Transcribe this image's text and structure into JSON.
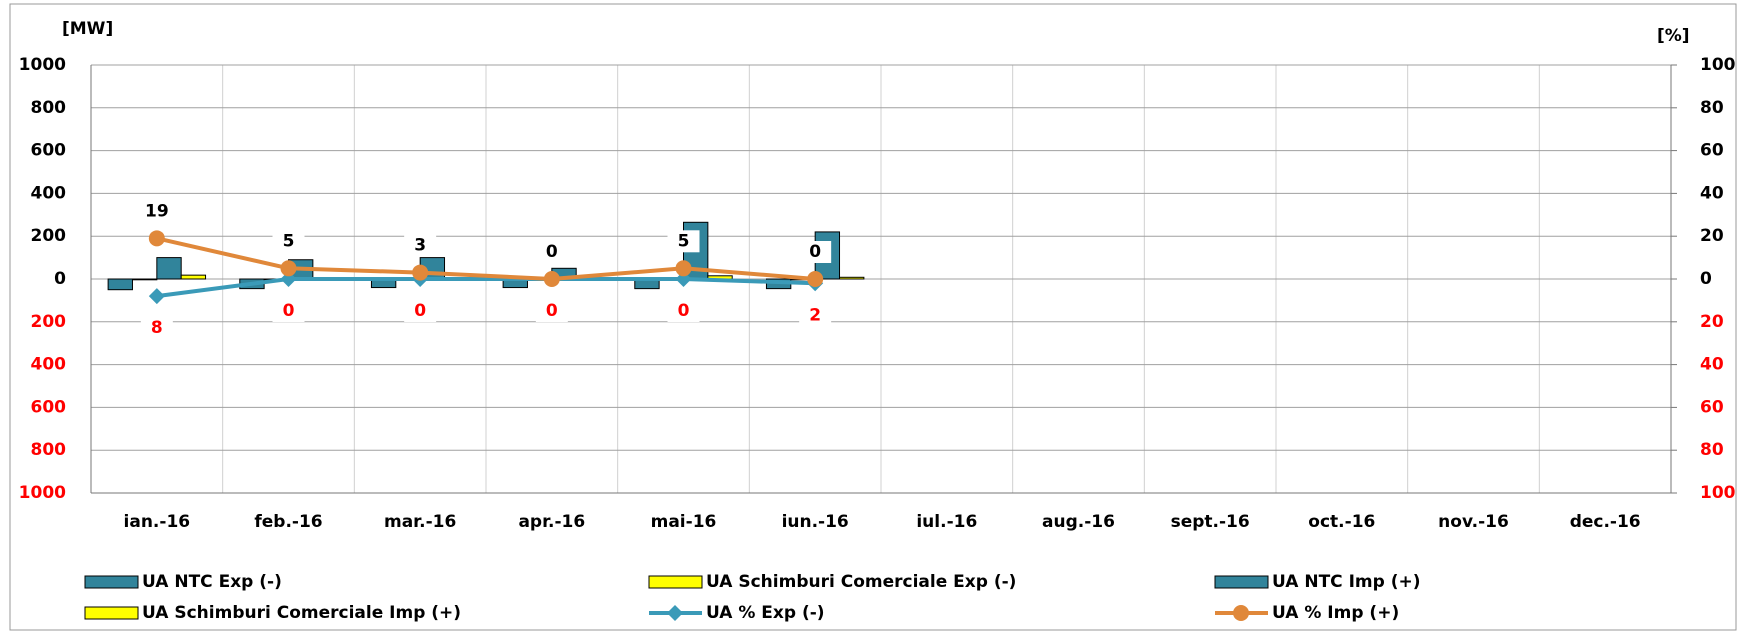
{
  "chart_data": {
    "type": "bar-line",
    "ylabel": "[MW]",
    "y2label": "[%]",
    "categories": [
      "ian.-16",
      "feb.-16",
      "mar.-16",
      "apr.-16",
      "mai-16",
      "iun.-16",
      "iul.-16",
      "aug.-16",
      "sept.-16",
      "oct.-16",
      "nov.-16",
      "dec.-16"
    ],
    "ylim": [
      -1000,
      1000
    ],
    "yticks": [
      {
        "value": -1000,
        "label": "1000"
      },
      {
        "value": -800,
        "label": "800"
      },
      {
        "value": -600,
        "label": "600"
      },
      {
        "value": -400,
        "label": "400"
      },
      {
        "value": -200,
        "label": "200"
      },
      0,
      200,
      400,
      600,
      800,
      1000
    ],
    "y2lim": [
      -100,
      100
    ],
    "y2ticks": [
      {
        "value": -100,
        "label": "100"
      },
      {
        "value": -80,
        "label": "80"
      },
      {
        "value": -60,
        "label": "60"
      },
      {
        "value": -40,
        "label": "40"
      },
      {
        "value": -20,
        "label": "20"
      },
      0,
      20,
      40,
      60,
      80,
      100
    ],
    "negative_label_color": "#ff0000",
    "grid": true,
    "series": [
      {
        "name": "UA NTC Exp (-)",
        "type": "bar",
        "color": "#31849b",
        "values": [
          -50,
          -45,
          -40,
          -40,
          -45,
          -45,
          null,
          null,
          null,
          null,
          null,
          null
        ]
      },
      {
        "name": "UA Schimburi Comerciale Exp (-)",
        "type": "bar",
        "color": "#ffff00",
        "values": [
          -3,
          0,
          0,
          0,
          0,
          0,
          null,
          null,
          null,
          null,
          null,
          null
        ]
      },
      {
        "name": "UA NTC Imp (+)",
        "type": "bar",
        "color": "#31849b",
        "values": [
          100,
          90,
          100,
          50,
          265,
          220,
          null,
          null,
          null,
          null,
          null,
          null
        ]
      },
      {
        "name": "UA Schimburi Comerciale Imp (+)",
        "type": "bar",
        "color": "#ffff00",
        "values": [
          18,
          5,
          3,
          0,
          15,
          8,
          null,
          null,
          null,
          null,
          null,
          null
        ]
      },
      {
        "name": "UA % Exp (-)",
        "type": "line",
        "axis": "y2",
        "marker": "diamond",
        "color": "#3a9ab8",
        "label_color": "#ff0000",
        "label_side": "below",
        "values": [
          -8,
          0,
          0,
          0,
          0,
          -2,
          null,
          null,
          null,
          null,
          null,
          null
        ],
        "value_labels": [
          "8",
          "0",
          "0",
          "0",
          "0",
          "2",
          null,
          null,
          null,
          null,
          null,
          null
        ]
      },
      {
        "name": "UA % Imp (+)",
        "type": "line",
        "axis": "y2",
        "marker": "circle",
        "color": "#e0883a",
        "label_color": "#000000",
        "label_side": "above",
        "values": [
          19,
          5,
          3,
          0,
          5,
          0,
          null,
          null,
          null,
          null,
          null,
          null
        ],
        "value_labels": [
          "19",
          "5",
          "3",
          "0",
          "5",
          "0",
          null,
          null,
          null,
          null,
          null,
          null
        ]
      }
    ]
  }
}
